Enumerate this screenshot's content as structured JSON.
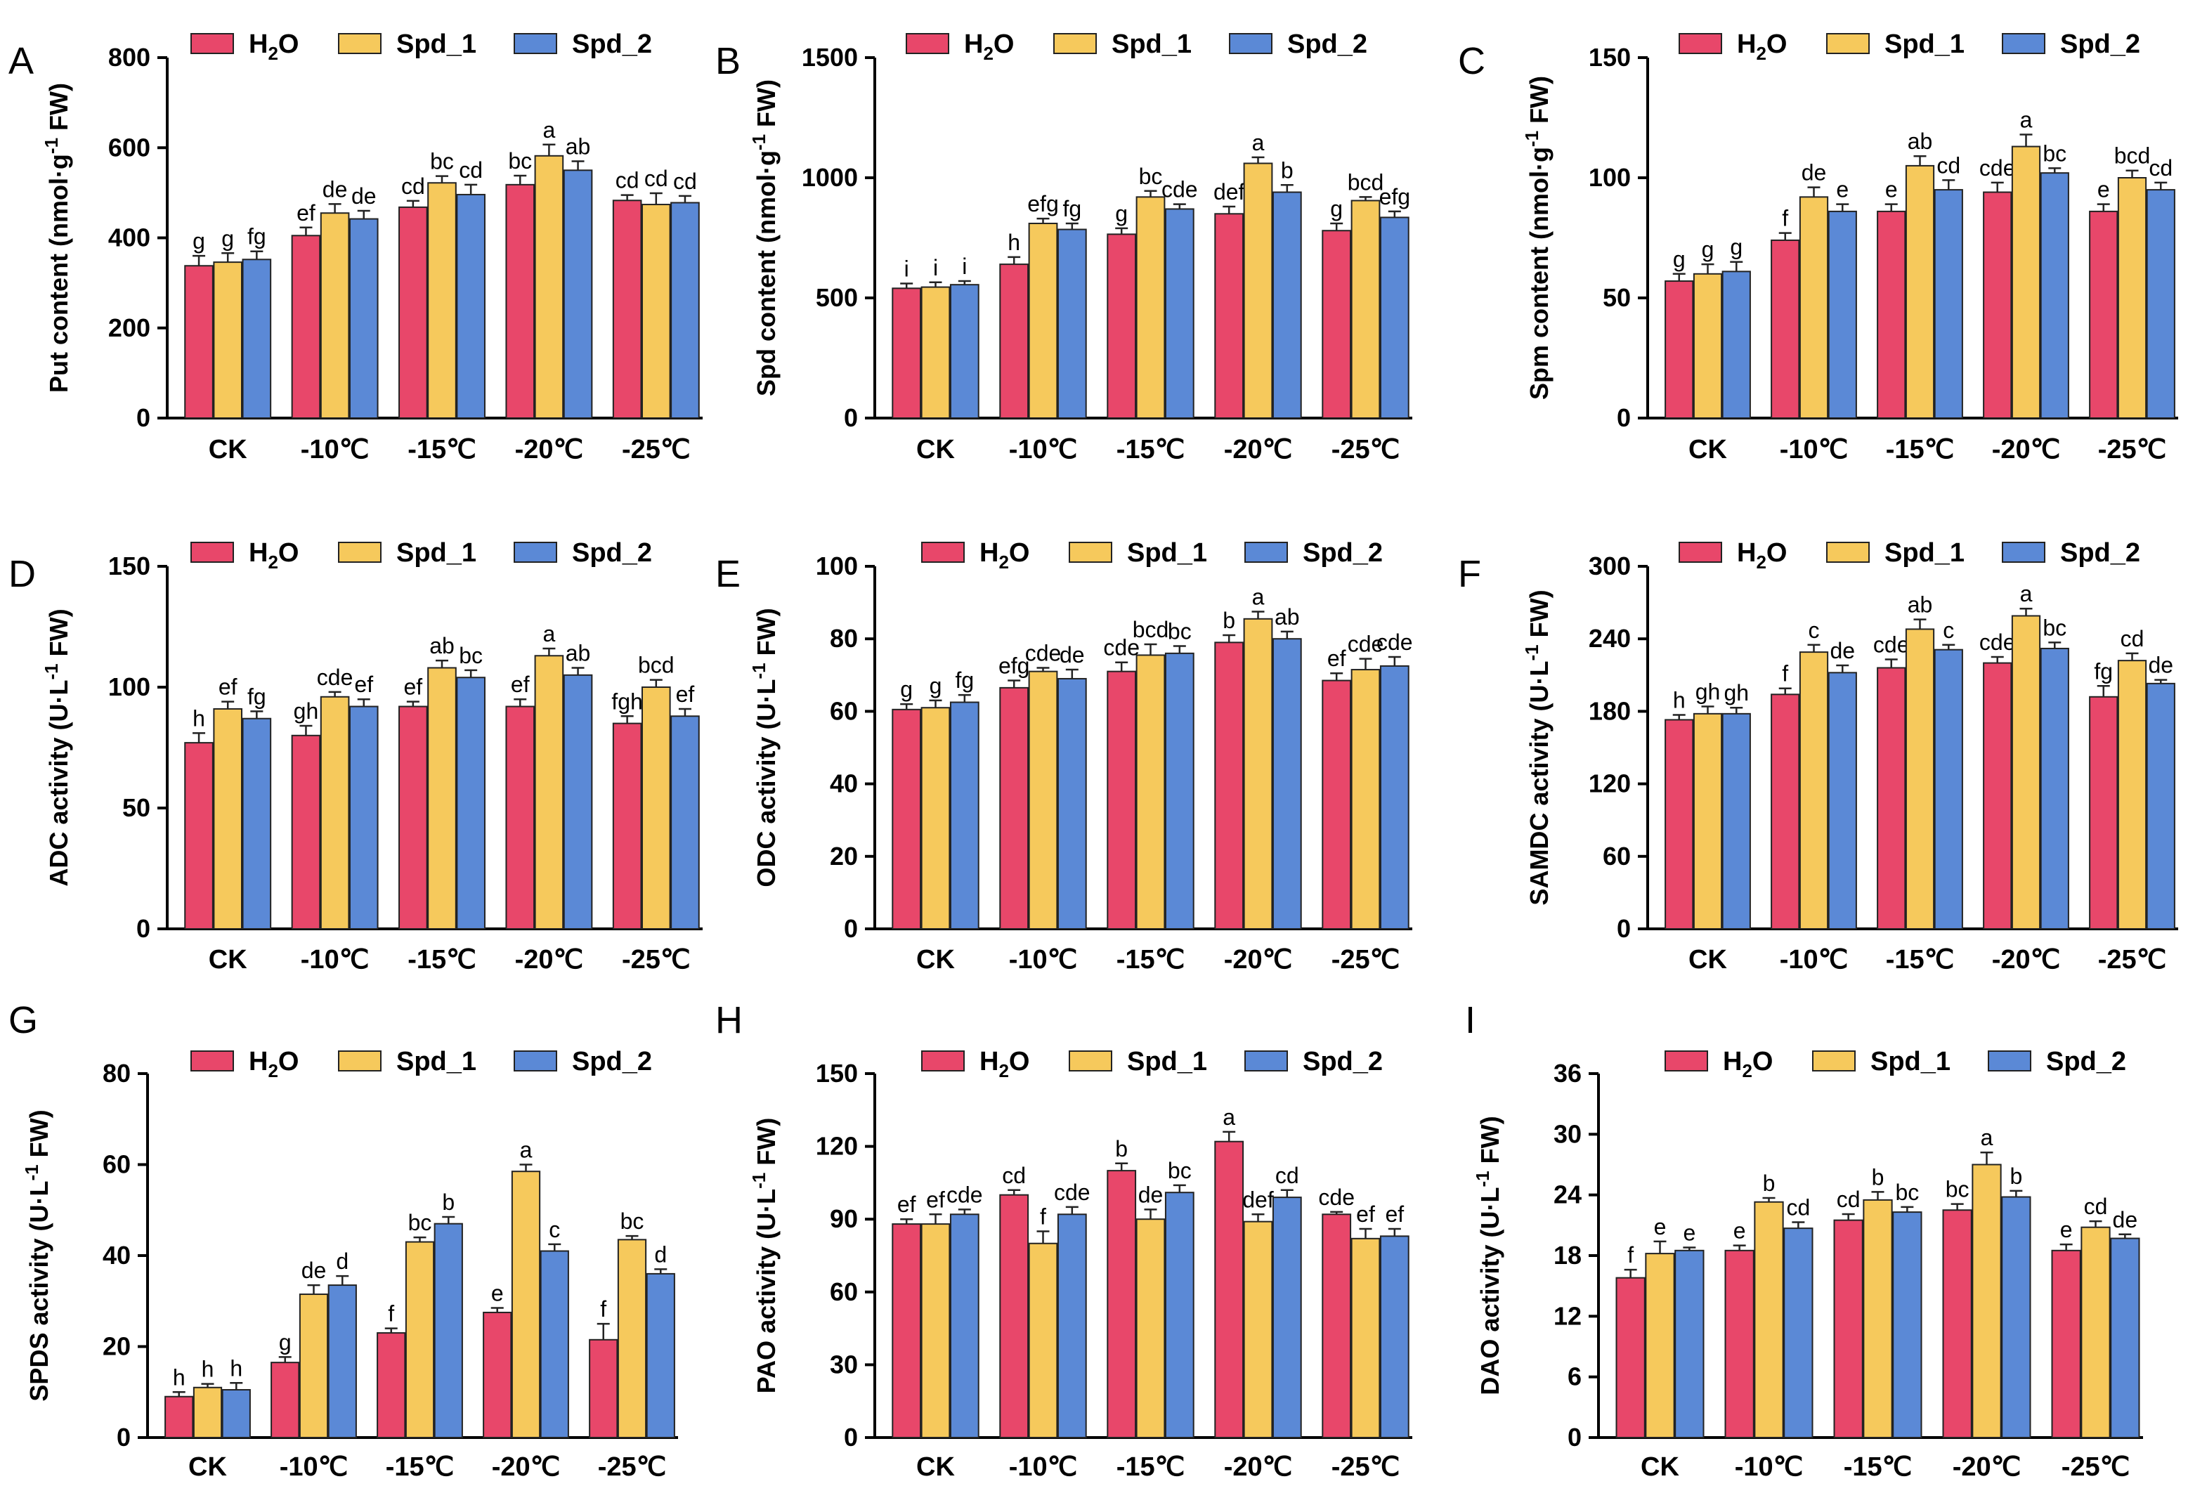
{
  "legend": {
    "series": [
      {
        "name": "H2O",
        "prefix": "H",
        "sub": "2",
        "suffix": "O",
        "color": "#e8476a"
      },
      {
        "name": "Spd_1",
        "prefix": "Spd_1",
        "sub": "",
        "suffix": "",
        "color": "#f6c95c"
      },
      {
        "name": "Spd_2",
        "prefix": "Spd_2",
        "sub": "",
        "suffix": "",
        "color": "#5b89d6"
      }
    ]
  },
  "colors": {
    "axis": "#000000",
    "bar_stroke": "#222222"
  },
  "chart_data": [
    {
      "panel": "A",
      "type": "bar",
      "ylabel_main": "Put content (nmol·g",
      "ylabel_sup": "-1",
      "ylabel_tail": " FW)",
      "categories": [
        "CK",
        "-10℃",
        "-15℃",
        "-20℃",
        "-25℃"
      ],
      "ylim": [
        0,
        800
      ],
      "yticks": [
        "0",
        "200",
        "400",
        "600",
        "800"
      ],
      "series": [
        {
          "name": "H2O",
          "values": [
            338,
            405,
            468,
            518,
            483
          ],
          "errors": [
            22,
            18,
            14,
            20,
            12
          ],
          "letters": [
            "g",
            "ef",
            "cd",
            "bc",
            "cd"
          ]
        },
        {
          "name": "Spd_1",
          "values": [
            346,
            455,
            522,
            582,
            474
          ],
          "errors": [
            20,
            20,
            15,
            25,
            25
          ],
          "letters": [
            "g",
            "de",
            "bc",
            "a",
            "cd"
          ]
        },
        {
          "name": "Spd_2",
          "values": [
            352,
            442,
            496,
            550,
            478
          ],
          "errors": [
            18,
            18,
            22,
            20,
            15
          ],
          "letters": [
            "fg",
            "de",
            "cd",
            "ab",
            "cd"
          ]
        }
      ]
    },
    {
      "panel": "B",
      "type": "bar",
      "ylabel_main": "Spd content (nmol·g",
      "ylabel_sup": "-1",
      "ylabel_tail": " FW)",
      "categories": [
        "CK",
        "-10℃",
        "-15℃",
        "-20℃",
        "-25℃"
      ],
      "ylim": [
        0,
        1500
      ],
      "yticks": [
        "0",
        "500",
        "1000",
        "1500"
      ],
      "series": [
        {
          "name": "H2O",
          "values": [
            540,
            640,
            765,
            850,
            780
          ],
          "errors": [
            20,
            30,
            25,
            30,
            30
          ],
          "letters": [
            "i",
            "h",
            "g",
            "def",
            "g"
          ]
        },
        {
          "name": "Spd_1",
          "values": [
            545,
            810,
            920,
            1060,
            905
          ],
          "errors": [
            20,
            20,
            25,
            25,
            15
          ],
          "letters": [
            "i",
            "efg",
            "bc",
            "a",
            "bcd"
          ]
        },
        {
          "name": "Spd_2",
          "values": [
            555,
            785,
            870,
            940,
            835
          ],
          "errors": [
            15,
            25,
            20,
            30,
            25
          ],
          "letters": [
            "i",
            "fg",
            "cde",
            "b",
            "efg"
          ]
        }
      ]
    },
    {
      "panel": "C",
      "type": "bar",
      "ylabel_main": "Spm content (nmol·g",
      "ylabel_sup": "-1",
      "ylabel_tail": " FW)",
      "categories": [
        "CK",
        "-10℃",
        "-15℃",
        "-20℃",
        "-25℃"
      ],
      "ylim": [
        0,
        150
      ],
      "yticks": [
        "0",
        "50",
        "100",
        "150"
      ],
      "series": [
        {
          "name": "H2O",
          "values": [
            57,
            74,
            86,
            94,
            86
          ],
          "errors": [
            3,
            3,
            3,
            4,
            3
          ],
          "letters": [
            "g",
            "f",
            "e",
            "cde",
            "e"
          ]
        },
        {
          "name": "Spd_1",
          "values": [
            60,
            92,
            105,
            113,
            100
          ],
          "errors": [
            4,
            4,
            4,
            5,
            3
          ],
          "letters": [
            "g",
            "de",
            "ab",
            "a",
            "bcd"
          ]
        },
        {
          "name": "Spd_2",
          "values": [
            61,
            86,
            95,
            102,
            95
          ],
          "errors": [
            4,
            3,
            4,
            2,
            3
          ],
          "letters": [
            "g",
            "e",
            "cd",
            "bc",
            "cd"
          ]
        }
      ]
    },
    {
      "panel": "D",
      "type": "bar",
      "ylabel_main": "ADC activity (U·L",
      "ylabel_sup": "-1",
      "ylabel_tail": " FW)",
      "categories": [
        "CK",
        "-10℃",
        "-15℃",
        "-20℃",
        "-25℃"
      ],
      "ylim": [
        0,
        150
      ],
      "yticks": [
        "0",
        "50",
        "100",
        "150"
      ],
      "series": [
        {
          "name": "H2O",
          "values": [
            77,
            80,
            92,
            92,
            85
          ],
          "errors": [
            4,
            4,
            2,
            3,
            3
          ],
          "letters": [
            "h",
            "gh",
            "ef",
            "ef",
            "fgh"
          ]
        },
        {
          "name": "Spd_1",
          "values": [
            91,
            96,
            108,
            113,
            100
          ],
          "errors": [
            3,
            2,
            3,
            3,
            3
          ],
          "letters": [
            "ef",
            "cde",
            "ab",
            "a",
            "bcd"
          ]
        },
        {
          "name": "Spd_2",
          "values": [
            87,
            92,
            104,
            105,
            88
          ],
          "errors": [
            3,
            3,
            3,
            3,
            3
          ],
          "letters": [
            "fg",
            "ef",
            "bc",
            "ab",
            "ef"
          ]
        }
      ]
    },
    {
      "panel": "E",
      "type": "bar",
      "ylabel_main": "ODC activity (U·L",
      "ylabel_sup": "-1",
      "ylabel_tail": " FW)",
      "categories": [
        "CK",
        "-10℃",
        "-15℃",
        "-20℃",
        "-25℃"
      ],
      "ylim": [
        0,
        100
      ],
      "yticks": [
        "0",
        "20",
        "40",
        "60",
        "80",
        "100"
      ],
      "series": [
        {
          "name": "H2O",
          "values": [
            60.5,
            66.5,
            71,
            79,
            68.5
          ],
          "errors": [
            1.5,
            2,
            2.5,
            2,
            2
          ],
          "letters": [
            "g",
            "efg",
            "cde",
            "b",
            "ef"
          ]
        },
        {
          "name": "Spd_1",
          "values": [
            61,
            71,
            75.5,
            85.5,
            71.5
          ],
          "errors": [
            2,
            1,
            3,
            2,
            3
          ],
          "letters": [
            "g",
            "cde",
            "bcd",
            "a",
            "cde"
          ]
        },
        {
          "name": "Spd_2",
          "values": [
            62.5,
            69,
            76,
            80,
            72.5
          ],
          "errors": [
            2,
            2.5,
            2,
            2,
            2.5
          ],
          "letters": [
            "fg",
            "de",
            "bc",
            "ab",
            "cde"
          ]
        }
      ]
    },
    {
      "panel": "F",
      "type": "bar",
      "ylabel_main": "SAMDC activity (U·L",
      "ylabel_sup": "-1",
      "ylabel_tail": " FW)",
      "categories": [
        "CK",
        "-10℃",
        "-15℃",
        "-20℃",
        "-25℃"
      ],
      "ylim": [
        0,
        300
      ],
      "yticks": [
        "0",
        "60",
        "120",
        "180",
        "240",
        "300"
      ],
      "series": [
        {
          "name": "H2O",
          "values": [
            173,
            194,
            216,
            220,
            192
          ],
          "errors": [
            4,
            5,
            7,
            5,
            9
          ],
          "letters": [
            "h",
            "f",
            "cde",
            "cde",
            "fg"
          ]
        },
        {
          "name": "Spd_1",
          "values": [
            178,
            229,
            248,
            259,
            222
          ],
          "errors": [
            6,
            6,
            8,
            6,
            6
          ],
          "letters": [
            "gh",
            "c",
            "ab",
            "a",
            "cd"
          ]
        },
        {
          "name": "Spd_2",
          "values": [
            178,
            212,
            231,
            232,
            203
          ],
          "errors": [
            5,
            6,
            4,
            5,
            3
          ],
          "letters": [
            "gh",
            "de",
            "c",
            "bc",
            "de"
          ]
        }
      ]
    },
    {
      "panel": "G",
      "type": "bar",
      "ylabel_main": "SPDS activity (U·L",
      "ylabel_sup": "-1",
      "ylabel_tail": " FW)",
      "categories": [
        "CK",
        "-10℃",
        "-15℃",
        "-20℃",
        "-25℃"
      ],
      "ylim": [
        0,
        80
      ],
      "yticks": [
        "0",
        "20",
        "40",
        "60",
        "80"
      ],
      "series": [
        {
          "name": "H2O",
          "values": [
            9,
            16.5,
            23,
            27.5,
            21.5
          ],
          "errors": [
            1,
            1.2,
            1,
            1,
            3.5
          ],
          "letters": [
            "h",
            "g",
            "f",
            "e",
            "f"
          ]
        },
        {
          "name": "Spd_1",
          "values": [
            11,
            31.5,
            43,
            58.5,
            43.5
          ],
          "errors": [
            0.8,
            2,
            1,
            1.5,
            0.8
          ],
          "letters": [
            "h",
            "de",
            "bc",
            "a",
            "bc"
          ]
        },
        {
          "name": "Spd_2",
          "values": [
            10.5,
            33.5,
            47,
            41,
            36
          ],
          "errors": [
            1.5,
            2,
            1.5,
            1.5,
            1
          ],
          "letters": [
            "h",
            "d",
            "b",
            "c",
            "d"
          ]
        }
      ]
    },
    {
      "panel": "H",
      "type": "bar",
      "ylabel_main": "PAO activity (U·L",
      "ylabel_sup": "-1",
      "ylabel_tail": " FW)",
      "categories": [
        "CK",
        "-10℃",
        "-15℃",
        "-20℃",
        "-25℃"
      ],
      "ylim": [
        0,
        150
      ],
      "yticks": [
        "0",
        "30",
        "60",
        "90",
        "120",
        "150"
      ],
      "series": [
        {
          "name": "H2O",
          "values": [
            88,
            100,
            110,
            122,
            92
          ],
          "errors": [
            2,
            2,
            3,
            4,
            1
          ],
          "letters": [
            "ef",
            "cd",
            "b",
            "a",
            "cde"
          ]
        },
        {
          "name": "Spd_1",
          "values": [
            88,
            80,
            90,
            89,
            82
          ],
          "errors": [
            4,
            5,
            4,
            3,
            4
          ],
          "letters": [
            "ef",
            "f",
            "de",
            "def",
            "ef"
          ]
        },
        {
          "name": "Spd_2",
          "values": [
            92,
            92,
            101,
            99,
            83
          ],
          "errors": [
            2,
            3,
            3,
            3,
            3
          ],
          "letters": [
            "cde",
            "cde",
            "bc",
            "cd",
            "ef"
          ]
        }
      ]
    },
    {
      "panel": "I",
      "type": "bar",
      "ylabel_main": "DAO activity (U·L",
      "ylabel_sup": "-1",
      "ylabel_tail": " FW)",
      "categories": [
        "CK",
        "-10℃",
        "-15℃",
        "-20℃",
        "-25℃"
      ],
      "ylim": [
        0,
        36
      ],
      "yticks": [
        "0",
        "6",
        "12",
        "18",
        "24",
        "30",
        "36"
      ],
      "series": [
        {
          "name": "H2O",
          "values": [
            15.8,
            18.5,
            21.5,
            22.5,
            18.5
          ],
          "errors": [
            0.8,
            0.5,
            0.6,
            0.6,
            0.6
          ],
          "letters": [
            "f",
            "e",
            "cd",
            "bc",
            "e"
          ]
        },
        {
          "name": "Spd_1",
          "values": [
            18.2,
            23.3,
            23.5,
            27,
            20.8
          ],
          "errors": [
            1.2,
            0.4,
            0.8,
            1.2,
            0.6
          ],
          "letters": [
            "e",
            "b",
            "b",
            "a",
            "cd"
          ]
        },
        {
          "name": "Spd_2",
          "values": [
            18.5,
            20.7,
            22.3,
            23.8,
            19.7
          ],
          "errors": [
            0.3,
            0.6,
            0.5,
            0.6,
            0.4
          ],
          "letters": [
            "e",
            "cd",
            "bc",
            "b",
            "de"
          ]
        }
      ]
    }
  ]
}
